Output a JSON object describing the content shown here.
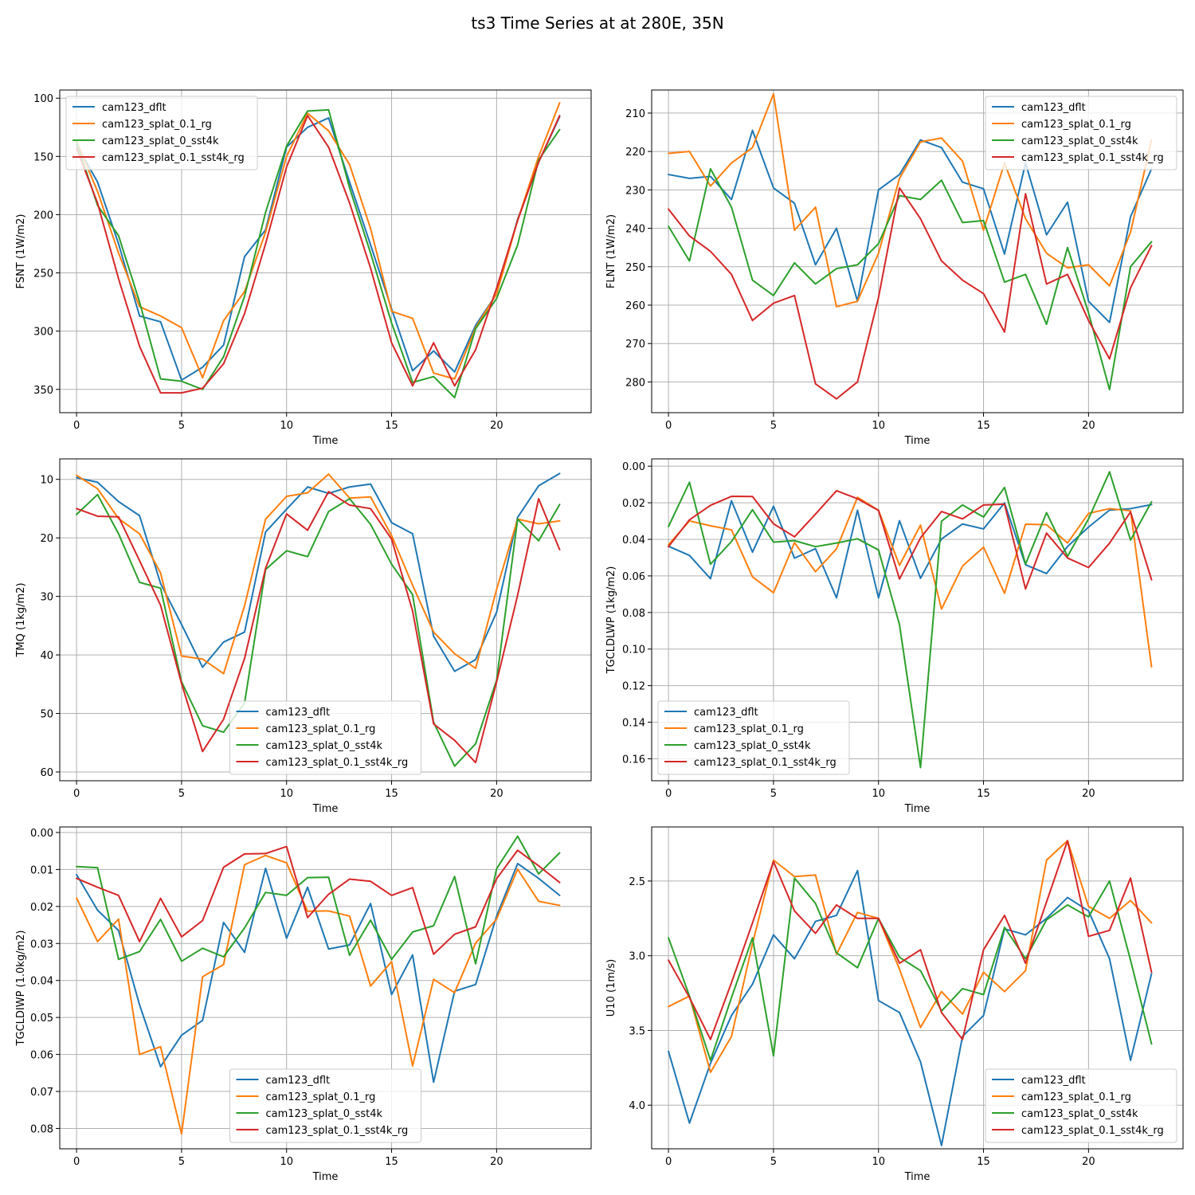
{
  "figure": {
    "title": "ts3 Time Series at at 280E, 35N"
  },
  "colors": {
    "cam123_dflt": "#1f77b4",
    "cam123_splat_0.1_rg": "#ff7f0e",
    "cam123_splat_0_sst4k": "#2ca02c",
    "cam123_splat_0.1_sst4k_rg": "#d62728"
  },
  "chart_data": [
    {
      "type": "line",
      "xlabel": "Time",
      "ylabel": "FSNT (1W/m2)",
      "xlim": [
        -0.8,
        24.5
      ],
      "ylim": [
        370,
        93
      ],
      "y_inverted": true,
      "xticks": [
        0,
        5,
        10,
        15,
        20
      ],
      "xtick_labels": [
        "0",
        "5",
        "10",
        "15",
        "20"
      ],
      "yticks": [
        100,
        150,
        200,
        250,
        300,
        350
      ],
      "ytick_labels": [
        "100",
        "150",
        "200",
        "250",
        "300",
        "350"
      ],
      "legend": "upper-left",
      "x": [
        0,
        1,
        2,
        3,
        4,
        5,
        6,
        7,
        8,
        9,
        10,
        11,
        12,
        13,
        14,
        15,
        16,
        17,
        18,
        19,
        20,
        21,
        22,
        23
      ],
      "series": [
        {
          "name": "cam123_dflt",
          "values": [
            140,
            172,
            225,
            287,
            292,
            342,
            331,
            312,
            236,
            213,
            142,
            125,
            117,
            172,
            226,
            281,
            334,
            317,
            335,
            295,
            268,
            204,
            155,
            116
          ]
        },
        {
          "name": "cam123_splat_0.1_rg",
          "values": [
            137,
            180,
            233,
            279,
            287,
            297,
            340,
            291,
            266,
            215,
            150,
            113,
            128,
            157,
            212,
            283,
            289,
            336,
            341,
            297,
            268,
            205,
            150,
            104
          ]
        },
        {
          "name": "cam123_splat_0_sst4k",
          "values": [
            138,
            192,
            218,
            275,
            341,
            343,
            350,
            322,
            270,
            198,
            141,
            111,
            110,
            177,
            233,
            293,
            344,
            339,
            357,
            298,
            272,
            226,
            153,
            127
          ]
        },
        {
          "name": "cam123_splat_0.1_sst4k_rg",
          "values": [
            143,
            190,
            255,
            313,
            353,
            353,
            349,
            328,
            285,
            225,
            159,
            115,
            142,
            190,
            246,
            310,
            347,
            310,
            347,
            316,
            263,
            205,
            155,
            115
          ]
        }
      ]
    },
    {
      "type": "line",
      "xlabel": "Time",
      "ylabel": "FLNT (1W/m2)",
      "xlim": [
        -0.8,
        24.5
      ],
      "ylim": [
        288,
        204
      ],
      "y_inverted": true,
      "xticks": [
        0,
        5,
        10,
        15,
        20
      ],
      "xtick_labels": [
        "0",
        "5",
        "10",
        "15",
        "20"
      ],
      "yticks": [
        210,
        220,
        230,
        240,
        250,
        260,
        270,
        280
      ],
      "ytick_labels": [
        "210",
        "220",
        "230",
        "240",
        "250",
        "260",
        "270",
        "280"
      ],
      "legend": "upper-right",
      "x": [
        0,
        1,
        2,
        3,
        4,
        5,
        6,
        7,
        8,
        9,
        10,
        11,
        12,
        13,
        14,
        15,
        16,
        17,
        18,
        19,
        20,
        21,
        22,
        23
      ],
      "series": [
        {
          "name": "cam123_dflt",
          "values": [
            226,
            227,
            226.5,
            232.5,
            214.5,
            229.5,
            233.5,
            249.5,
            240,
            259,
            230,
            226,
            217,
            219,
            228,
            229.7,
            246.7,
            223,
            241.7,
            233.2,
            259,
            264.5,
            237,
            224.5
          ]
        },
        {
          "name": "cam123_splat_0.1_rg",
          "values": [
            220.5,
            220,
            229,
            223,
            219,
            205,
            240.5,
            234.5,
            260.4,
            259,
            246.5,
            227,
            217.5,
            216.5,
            222.5,
            240.5,
            223,
            237.5,
            246.5,
            250.3,
            249.5,
            255,
            241,
            217
          ]
        },
        {
          "name": "cam123_splat_0_sst4k",
          "values": [
            239.5,
            248.5,
            224.5,
            234.5,
            253.5,
            257.5,
            249,
            254.5,
            250.5,
            249.5,
            244,
            231.5,
            232.5,
            227.5,
            238.5,
            238,
            254,
            252,
            265,
            245,
            262,
            282,
            250,
            243.5
          ]
        },
        {
          "name": "cam123_splat_0.1_sst4k_rg",
          "values": [
            235,
            242,
            246,
            252,
            264,
            259.5,
            257.5,
            280.5,
            284.4,
            280,
            258,
            229.5,
            237.5,
            248.5,
            253.5,
            257,
            267,
            231,
            254.5,
            252,
            264,
            274,
            255.5,
            244.5
          ]
        }
      ]
    },
    {
      "type": "line",
      "xlabel": "Time",
      "ylabel": "TMQ (1kg/m2)",
      "xlim": [
        -0.8,
        24.5
      ],
      "ylim": [
        61.5,
        6.5
      ],
      "y_inverted": true,
      "xticks": [
        0,
        5,
        10,
        15,
        20
      ],
      "xtick_labels": [
        "0",
        "5",
        "10",
        "15",
        "20"
      ],
      "yticks": [
        10,
        20,
        30,
        40,
        50,
        60
      ],
      "ytick_labels": [
        "10",
        "20",
        "30",
        "40",
        "50",
        "60"
      ],
      "legend": "lower-center",
      "x": [
        0,
        1,
        2,
        3,
        4,
        5,
        6,
        7,
        8,
        9,
        10,
        11,
        12,
        13,
        14,
        15,
        16,
        17,
        18,
        19,
        20,
        21,
        22,
        23
      ],
      "series": [
        {
          "name": "cam123_dflt",
          "values": [
            9.7,
            10.5,
            13.8,
            16.2,
            27.8,
            34.8,
            42.1,
            37.8,
            36.1,
            19.0,
            15.1,
            11.3,
            12.4,
            11.3,
            10.8,
            17.4,
            19.3,
            36.8,
            42.8,
            40.8,
            32.7,
            16.5,
            11.1,
            9.0
          ]
        },
        {
          "name": "cam123_splat_0.1_rg",
          "values": [
            9.3,
            11.6,
            16.7,
            19.3,
            26.0,
            40.2,
            40.7,
            43.2,
            31.6,
            16.8,
            12.9,
            12.3,
            9.1,
            13.2,
            13.0,
            19.6,
            28.1,
            36.1,
            39.8,
            42.3,
            28.8,
            16.8,
            17.6,
            17.1
          ]
        },
        {
          "name": "cam123_splat_0_sst4k",
          "values": [
            16.0,
            12.6,
            19.3,
            27.6,
            28.6,
            44.6,
            52.1,
            53.2,
            48.2,
            25.4,
            22.2,
            23.2,
            15.5,
            13.3,
            17.7,
            24.5,
            29.7,
            51.5,
            59.0,
            55.2,
            44.3,
            16.8,
            20.5,
            14.3
          ]
        },
        {
          "name": "cam123_splat_0.1_sst4k_rg",
          "values": [
            15.0,
            16.3,
            16.4,
            23.9,
            31.5,
            44.9,
            56.5,
            51.0,
            40.6,
            25.2,
            15.9,
            18.7,
            12.1,
            14.4,
            15.0,
            20.2,
            32.5,
            51.8,
            54.6,
            58.4,
            44.6,
            29.8,
            13.3,
            22.0
          ]
        }
      ]
    },
    {
      "type": "line",
      "xlabel": "Time",
      "ylabel": "TGCLDLWP (1kg/m2)",
      "xlim": [
        -0.8,
        24.5
      ],
      "ylim": [
        0.172,
        -0.004
      ],
      "y_inverted": true,
      "xticks": [
        0,
        5,
        10,
        15,
        20
      ],
      "xtick_labels": [
        "0",
        "5",
        "10",
        "15",
        "20"
      ],
      "yticks": [
        0.0,
        0.02,
        0.04,
        0.06,
        0.08,
        0.1,
        0.12,
        0.14,
        0.16
      ],
      "ytick_labels": [
        "0.00",
        "0.02",
        "0.04",
        "0.06",
        "0.08",
        "0.10",
        "0.12",
        "0.14",
        "0.16"
      ],
      "legend": "lower-left",
      "x": [
        0,
        1,
        2,
        3,
        4,
        5,
        6,
        7,
        8,
        9,
        10,
        11,
        12,
        13,
        14,
        15,
        16,
        17,
        18,
        19,
        20,
        21,
        22,
        23
      ],
      "series": [
        {
          "name": "cam123_dflt",
          "values": [
            0.0438,
            0.0488,
            0.0615,
            0.0189,
            0.047,
            0.0219,
            0.0503,
            0.0451,
            0.072,
            0.0241,
            0.072,
            0.0298,
            0.0613,
            0.0398,
            0.0316,
            0.0343,
            0.0201,
            0.0539,
            0.0587,
            0.0439,
            0.0333,
            0.024,
            0.0232,
            0.021
          ]
        },
        {
          "name": "cam123_splat_0.1_rg",
          "values": [
            0.043,
            0.0299,
            0.0326,
            0.0348,
            0.0605,
            0.0692,
            0.0418,
            0.0577,
            0.0452,
            0.017,
            0.0241,
            0.0542,
            0.0322,
            0.0781,
            0.0546,
            0.0443,
            0.0695,
            0.0317,
            0.032,
            0.042,
            0.0258,
            0.0232,
            0.0244,
            0.1097
          ]
        },
        {
          "name": "cam123_splat_0_sst4k",
          "values": [
            0.033,
            0.0088,
            0.0536,
            0.0412,
            0.0238,
            0.0415,
            0.0407,
            0.044,
            0.042,
            0.0397,
            0.0458,
            0.0867,
            0.1648,
            0.0301,
            0.0212,
            0.0278,
            0.0116,
            0.0536,
            0.0254,
            0.0493,
            0.0288,
            0.0031,
            0.0404,
            0.0195
          ]
        },
        {
          "name": "cam123_splat_0.1_sst4k_rg",
          "values": [
            0.044,
            0.0293,
            0.0214,
            0.0165,
            0.0166,
            0.0315,
            0.0386,
            0.0262,
            0.0134,
            0.0178,
            0.0242,
            0.0617,
            0.0392,
            0.0248,
            0.0288,
            0.0212,
            0.0208,
            0.0671,
            0.0366,
            0.0502,
            0.0554,
            0.0421,
            0.025,
            0.0621
          ]
        }
      ]
    },
    {
      "type": "line",
      "xlabel": "Time",
      "ylabel": "TGCLDIWP (1.0kg/m2)",
      "xlim": [
        -0.8,
        24.5
      ],
      "ylim": [
        0.0855,
        -0.0015
      ],
      "y_inverted": true,
      "xticks": [
        0,
        5,
        10,
        15,
        20
      ],
      "xtick_labels": [
        "0",
        "5",
        "10",
        "15",
        "20"
      ],
      "yticks": [
        0.0,
        0.01,
        0.02,
        0.03,
        0.04,
        0.05,
        0.06,
        0.07,
        0.08
      ],
      "ytick_labels": [
        "0.00",
        "0.01",
        "0.02",
        "0.03",
        "0.04",
        "0.05",
        "0.06",
        "0.07",
        "0.08"
      ],
      "legend": "lower-center",
      "x": [
        0,
        1,
        2,
        3,
        4,
        5,
        6,
        7,
        8,
        9,
        10,
        11,
        12,
        13,
        14,
        15,
        16,
        17,
        18,
        19,
        20,
        21,
        22,
        23
      ],
      "series": [
        {
          "name": "cam123_dflt",
          "values": [
            0.0114,
            0.021,
            0.0265,
            0.0466,
            0.0633,
            0.0548,
            0.0508,
            0.0243,
            0.0324,
            0.0097,
            0.0286,
            0.0148,
            0.0315,
            0.0304,
            0.0192,
            0.0438,
            0.0331,
            0.0675,
            0.0429,
            0.0411,
            0.0226,
            0.0084,
            0.0124,
            0.017
          ]
        },
        {
          "name": "cam123_splat_0.1_rg",
          "values": [
            0.0177,
            0.0295,
            0.0234,
            0.06,
            0.0579,
            0.0815,
            0.039,
            0.0357,
            0.0087,
            0.0062,
            0.0082,
            0.0213,
            0.0212,
            0.0226,
            0.0415,
            0.0349,
            0.0631,
            0.0397,
            0.0433,
            0.0299,
            0.0234,
            0.0099,
            0.0186,
            0.0197
          ]
        },
        {
          "name": "cam123_splat_0_sst4k",
          "values": [
            0.0092,
            0.0095,
            0.0343,
            0.0322,
            0.0235,
            0.0348,
            0.0313,
            0.0336,
            0.0258,
            0.0162,
            0.017,
            0.0122,
            0.0121,
            0.0332,
            0.0237,
            0.0343,
            0.0269,
            0.0252,
            0.0119,
            0.0355,
            0.0098,
            0.001,
            0.0112,
            0.0055
          ]
        },
        {
          "name": "cam123_splat_0.1_sst4k_rg",
          "values": [
            0.0124,
            0.0148,
            0.017,
            0.0295,
            0.0178,
            0.0282,
            0.0238,
            0.0094,
            0.0058,
            0.0057,
            0.0038,
            0.023,
            0.0167,
            0.0126,
            0.0132,
            0.017,
            0.0149,
            0.0329,
            0.0275,
            0.0255,
            0.0125,
            0.0048,
            0.009,
            0.0135
          ]
        }
      ]
    },
    {
      "type": "line",
      "xlabel": "Time",
      "ylabel": "U10 (1m/s)",
      "xlim": [
        -0.8,
        24.5
      ],
      "ylim": [
        4.292,
        2.138
      ],
      "y_inverted": true,
      "xticks": [
        0,
        5,
        10,
        15,
        20
      ],
      "xtick_labels": [
        "0",
        "5",
        "10",
        "15",
        "20"
      ],
      "yticks": [
        2.5,
        3.0,
        3.5,
        4.0
      ],
      "ytick_labels": [
        "2.5",
        "3.0",
        "3.5",
        "4.0"
      ],
      "legend": "lower-right",
      "x": [
        0,
        1,
        2,
        3,
        4,
        5,
        6,
        7,
        8,
        9,
        10,
        11,
        12,
        13,
        14,
        15,
        16,
        17,
        18,
        19,
        20,
        21,
        22,
        23
      ],
      "series": [
        {
          "name": "cam123_dflt",
          "values": [
            3.64,
            4.12,
            3.72,
            3.4,
            3.19,
            2.86,
            3.02,
            2.77,
            2.73,
            2.43,
            3.3,
            3.38,
            3.71,
            4.27,
            3.54,
            3.4,
            2.82,
            2.86,
            2.75,
            2.61,
            2.7,
            3.02,
            3.7,
            3.12
          ]
        },
        {
          "name": "cam123_splat_0.1_rg",
          "values": [
            3.34,
            3.27,
            3.78,
            3.54,
            2.92,
            2.36,
            2.47,
            2.46,
            2.99,
            2.71,
            2.75,
            3.09,
            3.48,
            3.24,
            3.39,
            3.11,
            3.24,
            3.1,
            2.36,
            2.23,
            2.67,
            2.75,
            2.63,
            2.78
          ]
        },
        {
          "name": "cam123_splat_0_sst4k",
          "values": [
            2.88,
            3.27,
            3.7,
            3.28,
            2.88,
            3.67,
            2.48,
            2.65,
            2.98,
            3.08,
            2.75,
            3.01,
            3.1,
            3.37,
            3.22,
            3.26,
            2.81,
            3.02,
            2.76,
            2.66,
            2.74,
            2.5,
            3.03,
            3.59
          ]
        },
        {
          "name": "cam123_splat_0.1_sst4k_rg",
          "values": [
            3.03,
            3.28,
            3.56,
            3.18,
            2.78,
            2.37,
            2.7,
            2.85,
            2.66,
            2.75,
            2.75,
            3.05,
            2.96,
            3.38,
            3.56,
            2.96,
            2.73,
            3.05,
            2.64,
            2.23,
            2.87,
            2.83,
            2.48,
            3.11
          ]
        }
      ]
    }
  ]
}
